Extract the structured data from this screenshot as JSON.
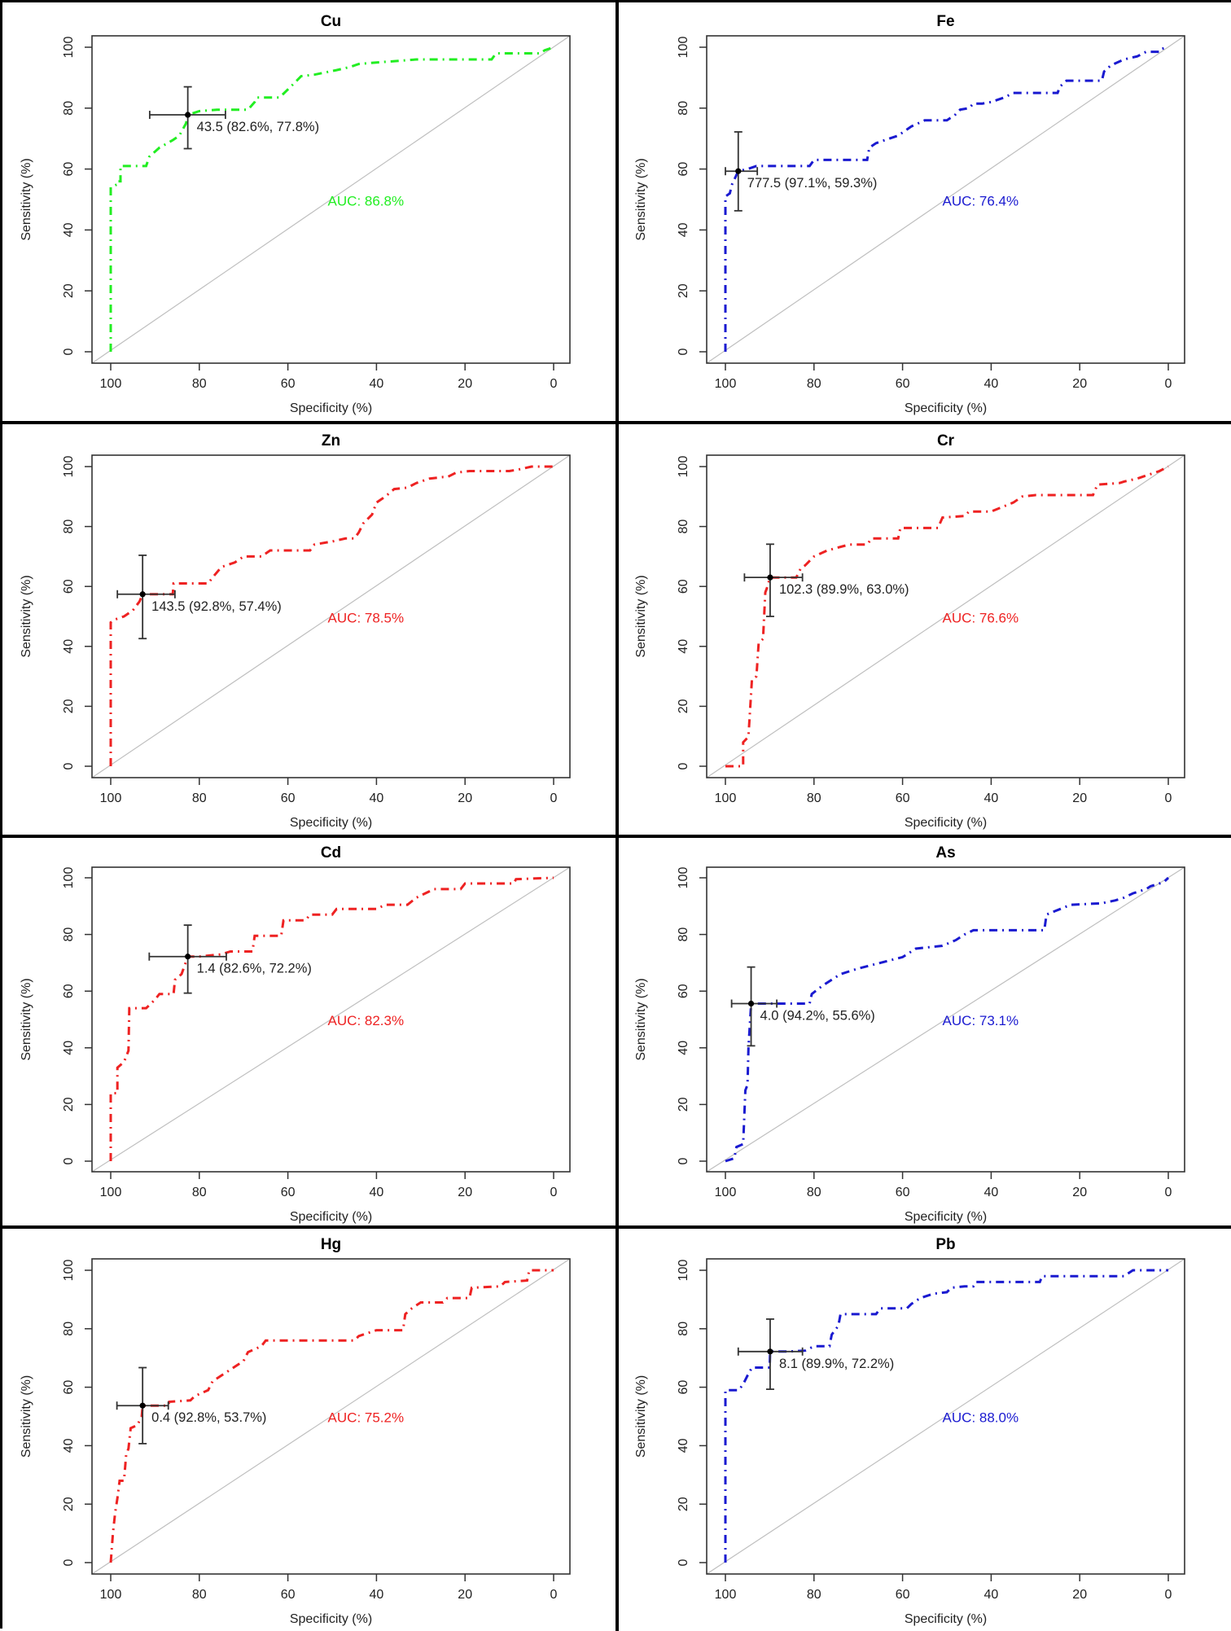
{
  "figure": {
    "layout": "4 rows x 2 columns of ROC curves",
    "background": "#ffffff",
    "frame_color": "#000000",
    "colors": {
      "green": "#22ee22",
      "blue": "#1a1ad0",
      "red": "#ee2222",
      "diagonal": "#bfbfbf",
      "ci": "#333333"
    }
  },
  "chart_data": [
    {
      "type": "line",
      "title": "Cu",
      "xlabel": "Specificity (%)",
      "ylabel": "Sensitivity (%)",
      "xlim": [
        100,
        0
      ],
      "ylim": [
        0,
        100
      ],
      "xticks": [
        "100",
        "80",
        "60",
        "40",
        "20",
        "0"
      ],
      "yticks": [
        "0",
        "20",
        "40",
        "60",
        "80",
        "100"
      ],
      "color": "#22ee22",
      "auc_label": "AUC: 86.8%",
      "auc": 86.8,
      "threshold_label": "43.5 (82.6%, 77.8%)",
      "threshold": {
        "value": 43.5,
        "specificity": 82.6,
        "sensitivity": 77.8,
        "spec_ci": [
          74.1,
          91.2
        ],
        "sens_ci": [
          66.7,
          87.0
        ]
      },
      "series": [
        {
          "name": "Cu ROC",
          "x": [
            100,
            100,
            98.5,
            98.5,
            97.8,
            97.8,
            93,
            92,
            91.3,
            89,
            86,
            84.5,
            83,
            82.6,
            80,
            76,
            72,
            69,
            67.5,
            67,
            62,
            61.5,
            58,
            57,
            54,
            49,
            46,
            44,
            40,
            35,
            31,
            29,
            25,
            22,
            20,
            14,
            13,
            10,
            3,
            2,
            0
          ],
          "y": [
            0,
            54,
            55,
            56,
            56,
            61,
            61,
            61,
            64,
            67,
            69.5,
            71,
            75,
            77.8,
            79,
            79.5,
            79.5,
            79.5,
            82,
            83.5,
            83.5,
            84,
            89,
            90.5,
            91,
            92.5,
            93.5,
            94.5,
            95,
            95.5,
            96,
            96,
            96,
            96,
            96,
            96,
            98,
            98,
            98,
            99,
            100
          ]
        }
      ]
    },
    {
      "type": "line",
      "title": "Fe",
      "xlabel": "Specificity (%)",
      "ylabel": "Sensitivity (%)",
      "xlim": [
        100,
        0
      ],
      "ylim": [
        0,
        100
      ],
      "xticks": [
        "100",
        "80",
        "60",
        "40",
        "20",
        "0"
      ],
      "yticks": [
        "0",
        "20",
        "40",
        "60",
        "80",
        "100"
      ],
      "color": "#1a1ad0",
      "auc_label": "AUC: 76.4%",
      "auc": 76.4,
      "threshold_label": "777.5 (97.1%, 59.3%)",
      "threshold": {
        "value": 777.5,
        "specificity": 97.1,
        "sensitivity": 59.3,
        "spec_ci": [
          92.8,
          100
        ],
        "sens_ci": [
          46.3,
          72.2
        ]
      },
      "series": [
        {
          "name": "Fe ROC",
          "x": [
            100,
            100,
            99,
            98.5,
            97.1,
            95,
            93,
            91,
            90,
            81,
            80,
            68,
            67.5,
            66,
            63,
            61,
            59,
            58,
            55,
            53,
            50,
            48,
            47,
            45,
            44,
            42,
            40,
            37,
            35,
            30,
            25,
            24.5,
            23,
            15,
            14.5,
            13,
            10,
            7,
            5,
            2,
            1.5,
            0
          ],
          "y": [
            0,
            51,
            52,
            55,
            59.3,
            60,
            61,
            61,
            61,
            61,
            63,
            63,
            67,
            68.5,
            70,
            71,
            73,
            74,
            76,
            76,
            76,
            78,
            79.5,
            80,
            81.5,
            81.5,
            82,
            83.5,
            85,
            85,
            85,
            87,
            89,
            89,
            92,
            94,
            96,
            97,
            98.5,
            98.5,
            99.5,
            100
          ]
        }
      ]
    },
    {
      "type": "line",
      "title": "Zn",
      "xlabel": "Specificity (%)",
      "ylabel": "Sensitivity (%)",
      "xlim": [
        100,
        0
      ],
      "ylim": [
        0,
        100
      ],
      "xticks": [
        "100",
        "80",
        "60",
        "40",
        "20",
        "0"
      ],
      "yticks": [
        "0",
        "20",
        "40",
        "60",
        "80",
        "100"
      ],
      "color": "#ee2222",
      "auc_label": "AUC: 78.5%",
      "auc": 78.5,
      "threshold_label": "143.5 (92.8%, 57.4%)",
      "threshold": {
        "value": 143.5,
        "specificity": 92.8,
        "sensitivity": 57.4,
        "spec_ci": [
          85.5,
          98.5
        ],
        "sens_ci": [
          42.6,
          70.4
        ]
      },
      "series": [
        {
          "name": "Zn ROC",
          "x": [
            100,
            100,
            99,
            97,
            95,
            93.5,
            92.8,
            90,
            86,
            85.8,
            78,
            77,
            75,
            72,
            70,
            66,
            64,
            55,
            54,
            50,
            47,
            45,
            44,
            43,
            41,
            40,
            38,
            36,
            33,
            31,
            28,
            25,
            24,
            22,
            19,
            10,
            8,
            5,
            0
          ],
          "y": [
            0,
            48,
            49,
            50,
            52,
            55,
            57.4,
            57.4,
            57.4,
            61,
            61,
            63,
            66.5,
            68,
            70,
            70,
            72,
            72,
            74,
            75,
            76,
            76,
            78,
            81,
            84,
            88,
            90,
            92.5,
            93,
            94.5,
            96,
            96.5,
            96.5,
            98,
            98.5,
            98.5,
            99,
            100,
            100
          ]
        }
      ]
    },
    {
      "type": "line",
      "title": "Cr",
      "xlabel": "Specificity (%)",
      "ylabel": "Sensitivity (%)",
      "xlim": [
        100,
        0
      ],
      "ylim": [
        0,
        100
      ],
      "xticks": [
        "100",
        "80",
        "60",
        "40",
        "20",
        "0"
      ],
      "yticks": [
        "0",
        "20",
        "40",
        "60",
        "80",
        "100"
      ],
      "color": "#ee2222",
      "auc_label": "AUC: 76.6%",
      "auc": 76.6,
      "threshold_label": "102.3 (89.9%, 63.0%)",
      "threshold": {
        "value": 102.3,
        "specificity": 89.9,
        "sensitivity": 63.0,
        "spec_ci": [
          82.6,
          95.7
        ],
        "sens_ci": [
          50.0,
          74.1
        ]
      },
      "series": [
        {
          "name": "Cr ROC",
          "x": [
            100,
            96,
            96,
            95,
            94.8,
            94,
            93,
            92.5,
            91.5,
            91,
            90.5,
            89.9,
            84,
            83,
            82,
            80,
            77,
            72,
            68,
            67,
            61,
            60.5,
            52,
            51,
            46,
            45,
            40,
            35,
            33,
            30,
            17,
            16,
            11,
            10,
            7,
            5,
            3,
            2,
            0
          ],
          "y": [
            0,
            0,
            8,
            9.5,
            10,
            29,
            30,
            41,
            42.5,
            58,
            60,
            63,
            63,
            66,
            67,
            70,
            72,
            74,
            74,
            76,
            76,
            79.5,
            79.5,
            83,
            83.5,
            85,
            85,
            88,
            90,
            90.5,
            90.5,
            94,
            94.5,
            95,
            96,
            97,
            98,
            98.5,
            100
          ]
        }
      ]
    },
    {
      "type": "line",
      "title": "Cd",
      "xlabel": "Specificity (%)",
      "ylabel": "Sensitivity (%)",
      "xlim": [
        100,
        0
      ],
      "ylim": [
        0,
        100
      ],
      "xticks": [
        "100",
        "80",
        "60",
        "40",
        "20",
        "0"
      ],
      "yticks": [
        "0",
        "20",
        "40",
        "60",
        "80",
        "100"
      ],
      "color": "#ee2222",
      "auc_label": "AUC: 82.3%",
      "auc": 82.3,
      "threshold_label": "1.4 (82.6%, 72.2%)",
      "threshold": {
        "value": 1.4,
        "specificity": 82.6,
        "sensitivity": 72.2,
        "spec_ci": [
          73.9,
          91.3
        ],
        "sens_ci": [
          59.3,
          83.3
        ]
      },
      "series": [
        {
          "name": "Cd ROC",
          "x": [
            100,
            100,
            98.5,
            98.5,
            97,
            96,
            95.8,
            92,
            90,
            89,
            85.8,
            85.5,
            84,
            82.6,
            80,
            75,
            73,
            68,
            67.5,
            61.5,
            61,
            56,
            55,
            50,
            49,
            40,
            38,
            33,
            31,
            27,
            21,
            20,
            9,
            8.5,
            0
          ],
          "y": [
            0,
            24,
            24,
            33,
            35,
            39,
            54,
            54,
            57,
            59,
            59,
            64,
            66,
            72.2,
            72.2,
            73,
            74,
            74,
            79.5,
            79.5,
            85,
            85,
            87,
            87,
            89,
            89,
            90.5,
            90.5,
            93,
            96,
            96,
            98,
            98,
            99.5,
            100
          ]
        }
      ]
    },
    {
      "type": "line",
      "title": "As",
      "xlabel": "Specificity (%)",
      "ylabel": "Sensitivity (%)",
      "xlim": [
        100,
        0
      ],
      "ylim": [
        0,
        100
      ],
      "xticks": [
        "100",
        "80",
        "60",
        "40",
        "20",
        "0"
      ],
      "yticks": [
        "0",
        "20",
        "40",
        "60",
        "80",
        "100"
      ],
      "color": "#1a1ad0",
      "auc_label": "AUC: 73.1%",
      "auc": 73.1,
      "threshold_label": "4.0 (94.2%, 55.6%)",
      "threshold": {
        "value": 4.0,
        "specificity": 94.2,
        "sensitivity": 55.6,
        "spec_ci": [
          88.4,
          98.6
        ],
        "sens_ci": [
          40.7,
          68.5
        ]
      },
      "series": [
        {
          "name": "As ROC",
          "x": [
            100,
            98,
            97.5,
            96,
            95.5,
            95,
            94.8,
            94.2,
            90,
            81,
            80.5,
            78,
            74,
            70,
            65,
            60,
            57,
            51,
            48,
            47,
            46,
            44,
            38,
            30,
            28,
            27.5,
            26,
            22,
            15,
            12,
            10,
            8,
            5,
            4,
            1,
            0
          ],
          "y": [
            0,
            1,
            5,
            6,
            25,
            27,
            40,
            55.6,
            55.6,
            55.6,
            59,
            62,
            66,
            68,
            70,
            72,
            75,
            76,
            78,
            79,
            80,
            81.5,
            81.5,
            81.5,
            81.5,
            87,
            88,
            90.5,
            91,
            92,
            93,
            94.5,
            96,
            97,
            98.5,
            100
          ]
        }
      ]
    },
    {
      "type": "line",
      "title": "Hg",
      "xlabel": "Specificity (%)",
      "ylabel": "Sensitivity (%)",
      "xlim": [
        100,
        0
      ],
      "ylim": [
        0,
        100
      ],
      "xticks": [
        "100",
        "80",
        "60",
        "40",
        "20",
        "0"
      ],
      "yticks": [
        "0",
        "20",
        "40",
        "60",
        "80",
        "100"
      ],
      "color": "#ee2222",
      "auc_label": "AUC: 75.2%",
      "auc": 75.2,
      "threshold_label": "0.4 (92.8%, 53.7%)",
      "threshold": {
        "value": 0.4,
        "specificity": 92.8,
        "sensitivity": 53.7,
        "spec_ci": [
          87.0,
          98.6
        ],
        "sens_ci": [
          40.7,
          66.7
        ]
      },
      "series": [
        {
          "name": "Hg ROC",
          "x": [
            100,
            99.5,
            99,
            98.5,
            98,
            97,
            96.5,
            96,
            95.5,
            94,
            93,
            92.8,
            87,
            86.8,
            82,
            81,
            78,
            77,
            74,
            72,
            70,
            69,
            66,
            65,
            45,
            44,
            42,
            40,
            34,
            33.5,
            32,
            30,
            25,
            24,
            19,
            18.5,
            12,
            11,
            6,
            5.5,
            0
          ],
          "y": [
            0,
            10,
            17,
            22,
            28,
            28,
            37,
            39,
            46,
            47,
            50,
            53.7,
            53.7,
            55,
            55.5,
            57,
            59,
            62,
            65,
            67,
            69,
            72,
            74,
            76,
            76,
            77.5,
            78.5,
            79.5,
            79.5,
            85,
            87,
            89,
            89,
            90.5,
            90.5,
            94,
            94.5,
            96,
            96.5,
            100,
            100
          ]
        }
      ]
    },
    {
      "type": "line",
      "title": "Pb",
      "xlabel": "Specificity (%)",
      "ylabel": "Sensitivity (%)",
      "xlim": [
        100,
        0
      ],
      "ylim": [
        0,
        100
      ],
      "xticks": [
        "100",
        "80",
        "60",
        "40",
        "20",
        "0"
      ],
      "yticks": [
        "0",
        "20",
        "40",
        "60",
        "80",
        "100"
      ],
      "color": "#1a1ad0",
      "auc_label": "AUC: 88.0%",
      "auc": 88.0,
      "threshold_label": "8.1 (89.9%, 72.2%)",
      "threshold": {
        "value": 8.1,
        "specificity": 89.9,
        "sensitivity": 72.2,
        "spec_ci": [
          82.6,
          97.1
        ],
        "sens_ci": [
          59.3,
          83.3
        ]
      },
      "series": [
        {
          "name": "Pb ROC",
          "x": [
            100,
            100,
            97,
            96,
            95,
            94,
            92,
            90,
            89.9,
            86,
            82,
            80,
            76.5,
            76,
            74.5,
            74,
            66,
            65,
            59,
            58,
            56,
            53,
            50,
            49,
            46,
            44,
            43.5,
            35,
            29,
            28.5,
            10,
            8,
            0
          ],
          "y": [
            0,
            59,
            59,
            61,
            64,
            66.7,
            66.7,
            66.7,
            72.2,
            72.2,
            72.5,
            74,
            74,
            78,
            81,
            85,
            85,
            87,
            87,
            88.5,
            90.5,
            92,
            92.5,
            94,
            94.5,
            94.5,
            96,
            96,
            96,
            98,
            98,
            100,
            100
          ]
        }
      ]
    }
  ]
}
